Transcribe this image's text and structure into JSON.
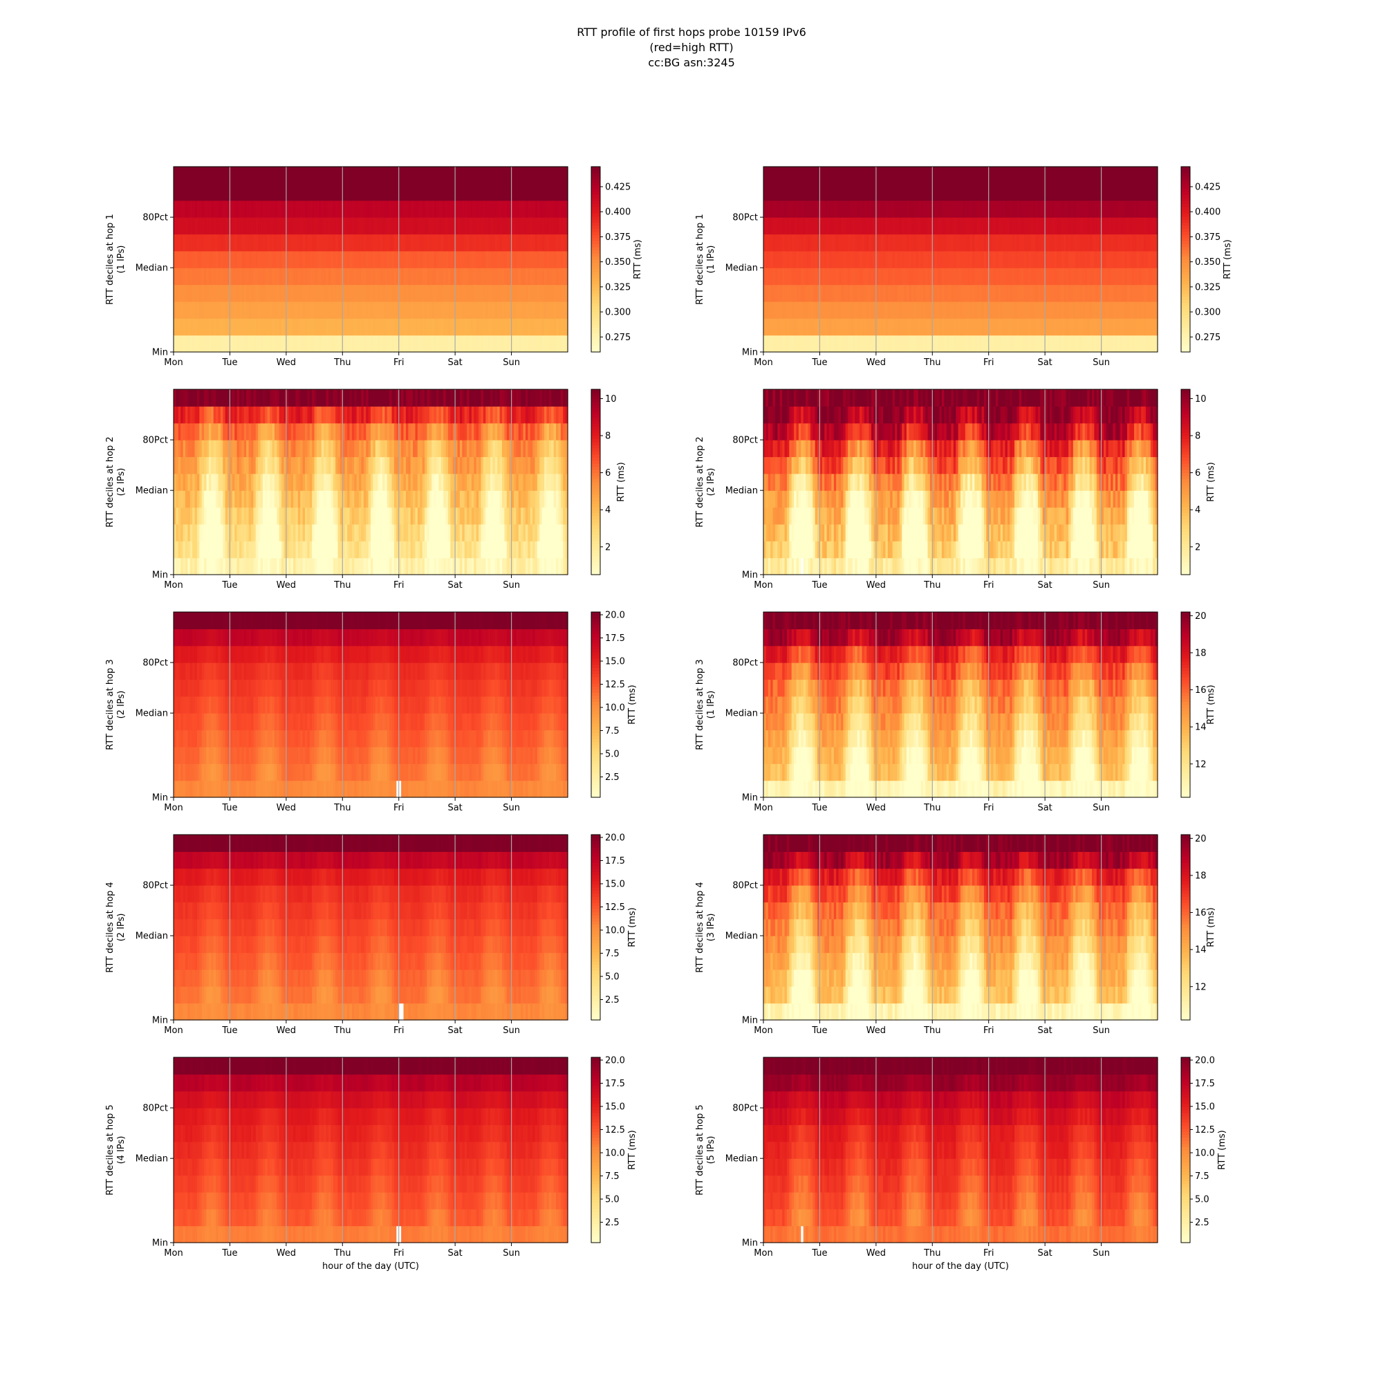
{
  "title_lines": [
    "RTT profile of first hops probe 10159 IPv6",
    "(red=high RTT)",
    "cc:BG asn:3245"
  ],
  "colors": {
    "colormap": "YlOrRd",
    "stops": [
      "#ffffcc",
      "#ffeda0",
      "#fed976",
      "#feb24c",
      "#fd8d3c",
      "#fc4e2a",
      "#e31a1c",
      "#bd0026",
      "#800026"
    ],
    "day_line": "#a9a9a9",
    "min_bar_white": "#ffffff"
  },
  "chart_data": [
    {
      "type": "heatmap",
      "column": "left",
      "hop": 1,
      "ylabel": "RTT deciles at hop 1",
      "ylabel_sub": "(1 IPs)",
      "yticks": [
        "Min",
        "Median",
        "80Pct"
      ],
      "xticks": [
        "Mon",
        "Tue",
        "Wed",
        "Thu",
        "Fri",
        "Sat",
        "Sun"
      ],
      "xlabel": "",
      "colorbar": {
        "label": "RTT (ms)",
        "range": [
          0.26,
          0.445
        ],
        "ticks": [
          "0.275",
          "0.300",
          "0.325",
          "0.350",
          "0.375",
          "0.400",
          "0.425"
        ]
      },
      "pattern": "flat",
      "decile_min": [
        0.28,
        0.33,
        0.34,
        0.35,
        0.36,
        0.37,
        0.39,
        0.41,
        0.42,
        0.45,
        0.45
      ],
      "amplitude": 0.006,
      "white_spikes": []
    },
    {
      "type": "heatmap",
      "column": "right",
      "hop": 1,
      "ylabel": "RTT deciles at hop 1",
      "ylabel_sub": "(1 IPs)",
      "yticks": [
        "Min",
        "Median",
        "80Pct"
      ],
      "xticks": [
        "Mon",
        "Tue",
        "Wed",
        "Thu",
        "Fri",
        "Sat",
        "Sun"
      ],
      "xlabel": "",
      "colorbar": {
        "label": "RTT (ms)",
        "range": [
          0.26,
          0.445
        ],
        "ticks": [
          "0.275",
          "0.300",
          "0.325",
          "0.350",
          "0.375",
          "0.400",
          "0.425"
        ]
      },
      "pattern": "flat",
      "decile_min": [
        0.28,
        0.34,
        0.35,
        0.36,
        0.37,
        0.38,
        0.39,
        0.41,
        0.43,
        0.45,
        0.45
      ],
      "amplitude": 0.006,
      "white_spikes": []
    },
    {
      "type": "heatmap",
      "column": "left",
      "hop": 2,
      "ylabel": "RTT deciles at hop 2",
      "ylabel_sub": "(2 IPs)",
      "yticks": [
        "Min",
        "Median",
        "80Pct"
      ],
      "xticks": [
        "Mon",
        "Tue",
        "Wed",
        "Thu",
        "Fri",
        "Sat",
        "Sun"
      ],
      "xlabel": "",
      "colorbar": {
        "label": "RTT (ms)",
        "range": [
          0.5,
          10.5
        ],
        "ticks": [
          "2",
          "4",
          "6",
          "8",
          "10"
        ]
      },
      "pattern": "daily",
      "decile_min": [
        1.5,
        2.5,
        3.0,
        3.5,
        4.0,
        4.5,
        5.0,
        5.5,
        6.5,
        8.0,
        10.5
      ],
      "amplitude": 4.0,
      "white_spikes": []
    },
    {
      "type": "heatmap",
      "column": "right",
      "hop": 2,
      "ylabel": "RTT deciles at hop 2",
      "ylabel_sub": "(2 IPs)",
      "yticks": [
        "Min",
        "Median",
        "80Pct"
      ],
      "xticks": [
        "Mon",
        "Tue",
        "Wed",
        "Thu",
        "Fri",
        "Sat",
        "Sun"
      ],
      "xlabel": "",
      "colorbar": {
        "label": "RTT (ms)",
        "range": [
          0.5,
          10.5
        ],
        "ticks": [
          "2",
          "4",
          "6",
          "8",
          "10"
        ]
      },
      "pattern": "daily-strong",
      "decile_min": [
        2.0,
        3.5,
        4.0,
        4.5,
        5.0,
        6.0,
        7.0,
        8.0,
        9.5,
        10.5,
        10.5
      ],
      "amplitude": 5.0,
      "white_spikes": [
        0.094
      ]
    },
    {
      "type": "heatmap",
      "column": "left",
      "hop": 3,
      "ylabel": "RTT deciles at hop 3",
      "ylabel_sub": "(2 IPs)",
      "yticks": [
        "Min",
        "Median",
        "80Pct"
      ],
      "xticks": [
        "Mon",
        "Tue",
        "Wed",
        "Thu",
        "Fri",
        "Sat",
        "Sun"
      ],
      "xlabel": "",
      "colorbar": {
        "label": "RTT (ms)",
        "range": [
          0.3,
          20.3
        ],
        "ticks": [
          "2.5",
          "5.0",
          "7.5",
          "10.0",
          "12.5",
          "15.0",
          "17.5",
          "20.0"
        ]
      },
      "pattern": "daily",
      "decile_min": [
        10.5,
        11.5,
        12.0,
        12.5,
        13.0,
        13.5,
        14.0,
        14.5,
        15.5,
        17.5,
        20.3
      ],
      "amplitude": 1.5,
      "white_spikes": [
        0.569
      ]
    },
    {
      "type": "heatmap",
      "column": "right",
      "hop": 3,
      "ylabel": "RTT deciles at hop 3",
      "ylabel_sub": "(1 IPs)",
      "yticks": [
        "Min",
        "Median",
        "80Pct"
      ],
      "xticks": [
        "Mon",
        "Tue",
        "Wed",
        "Thu",
        "Fri",
        "Sat",
        "Sun"
      ],
      "xlabel": "",
      "colorbar": {
        "label": "RTT (ms)",
        "range": [
          10.2,
          20.2
        ],
        "ticks": [
          "12",
          "14",
          "16",
          "18",
          "20"
        ]
      },
      "pattern": "daily-strong",
      "decile_min": [
        11.0,
        13.5,
        14.0,
        14.5,
        15.0,
        15.5,
        16.0,
        16.8,
        17.8,
        19.5,
        20.2
      ],
      "amplitude": 3.5,
      "white_spikes": []
    },
    {
      "type": "heatmap",
      "column": "left",
      "hop": 4,
      "ylabel": "RTT deciles at hop 4",
      "ylabel_sub": "(2 IPs)",
      "yticks": [
        "Min",
        "Median",
        "80Pct"
      ],
      "xticks": [
        "Mon",
        "Tue",
        "Wed",
        "Thu",
        "Fri",
        "Sat",
        "Sun"
      ],
      "xlabel": "",
      "colorbar": {
        "label": "RTT (ms)",
        "range": [
          0.3,
          20.3
        ],
        "ticks": [
          "2.5",
          "5.0",
          "7.5",
          "10.0",
          "12.5",
          "15.0",
          "17.5",
          "20.0"
        ]
      },
      "pattern": "daily",
      "decile_min": [
        10.5,
        11.5,
        12.0,
        12.5,
        13.0,
        13.5,
        14.0,
        14.5,
        15.5,
        17.5,
        20.3
      ],
      "amplitude": 1.5,
      "white_spikes": [
        0.574
      ]
    },
    {
      "type": "heatmap",
      "column": "right",
      "hop": 4,
      "ylabel": "RTT deciles at hop 4",
      "ylabel_sub": "(3 IPs)",
      "yticks": [
        "Min",
        "Median",
        "80Pct"
      ],
      "xticks": [
        "Mon",
        "Tue",
        "Wed",
        "Thu",
        "Fri",
        "Sat",
        "Sun"
      ],
      "xlabel": "",
      "colorbar": {
        "label": "RTT (ms)",
        "range": [
          10.2,
          20.2
        ],
        "ticks": [
          "12",
          "14",
          "16",
          "18",
          "20"
        ]
      },
      "pattern": "daily-strong",
      "decile_min": [
        11.0,
        13.5,
        14.0,
        14.5,
        15.0,
        15.5,
        16.0,
        16.8,
        17.8,
        19.5,
        20.2
      ],
      "amplitude": 3.5,
      "white_spikes": []
    },
    {
      "type": "heatmap",
      "column": "left",
      "hop": 5,
      "ylabel": "RTT deciles at hop 5",
      "ylabel_sub": "(4 IPs)",
      "yticks": [
        "Min",
        "Median",
        "80Pct"
      ],
      "xticks": [
        "Mon",
        "Tue",
        "Wed",
        "Thu",
        "Fri",
        "Sat",
        "Sun"
      ],
      "xlabel": "hour of the day (UTC)",
      "colorbar": {
        "label": "RTT (ms)",
        "range": [
          0.3,
          20.3
        ],
        "ticks": [
          "2.5",
          "5.0",
          "7.5",
          "10.0",
          "12.5",
          "15.0",
          "17.5",
          "20.0"
        ]
      },
      "pattern": "daily",
      "decile_min": [
        11.0,
        12.5,
        13.0,
        13.5,
        14.0,
        14.5,
        15.0,
        15.5,
        16.5,
        18.0,
        20.3
      ],
      "amplitude": 1.5,
      "white_spikes": [
        0.569
      ]
    },
    {
      "type": "heatmap",
      "column": "right",
      "hop": 5,
      "ylabel": "RTT deciles at hop 5",
      "ylabel_sub": "(5 IPs)",
      "yticks": [
        "Min",
        "Median",
        "80Pct"
      ],
      "xticks": [
        "Mon",
        "Tue",
        "Wed",
        "Thu",
        "Fri",
        "Sat",
        "Sun"
      ],
      "xlabel": "hour of the day (UTC)",
      "colorbar": {
        "label": "RTT (ms)",
        "range": [
          0.3,
          20.3
        ],
        "ticks": [
          "2.5",
          "5.0",
          "7.5",
          "10.0",
          "12.5",
          "15.0",
          "17.5",
          "20.0"
        ]
      },
      "pattern": "daily-strong",
      "decile_min": [
        11.5,
        13.0,
        13.5,
        14.0,
        14.5,
        15.0,
        15.5,
        16.5,
        17.5,
        19.5,
        20.3
      ],
      "amplitude": 2.5,
      "white_spikes": [
        0.094
      ]
    }
  ]
}
